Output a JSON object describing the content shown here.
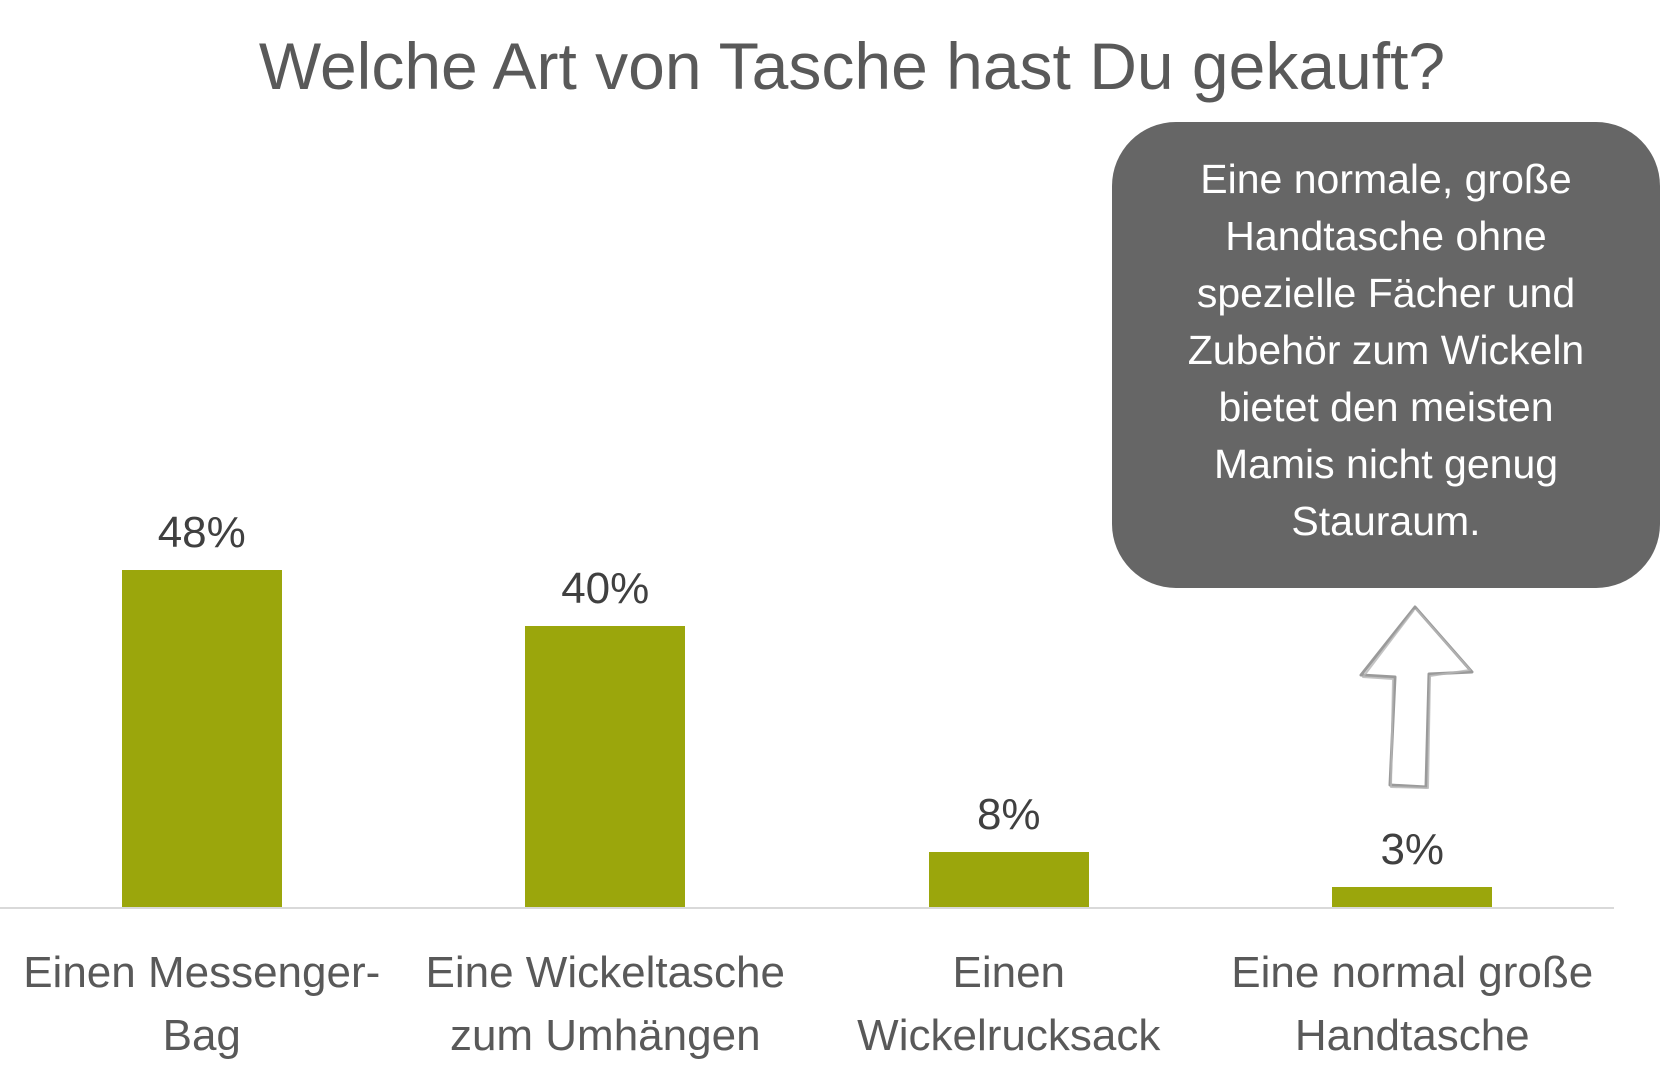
{
  "chart_data": {
    "type": "bar",
    "title": "Welche Art von Tasche hast Du gekauft?",
    "categories": [
      "Einen Messenger-Bag",
      "Eine Wickeltasche zum Umhängen",
      "Einen Wickelrucksack",
      "Eine normal große Handtasche"
    ],
    "values": [
      48,
      40,
      8,
      3
    ],
    "data_labels": [
      "48%",
      "40%",
      "8%",
      "3%"
    ],
    "xlabel": "",
    "ylabel": "",
    "grid": false,
    "legend": "none",
    "color": "#9BA60C"
  },
  "callout": {
    "text_lines": [
      "Eine normale, große",
      "Handtasche ohne",
      "spezielle Fächer und",
      "Zubehör zum Wickeln",
      "bietet den meisten",
      "Mamis nicht genug",
      "Stauraum."
    ],
    "background": "#666666",
    "text_color": "#FFFFFF"
  },
  "arrow": {
    "icon": "arrow-up-outline-icon"
  },
  "colors": {
    "title": "#595959",
    "category_labels": "#595959",
    "data_labels": "#404040",
    "axis": "#D9D9D9",
    "arrow_stroke": "#9A9A9A"
  }
}
